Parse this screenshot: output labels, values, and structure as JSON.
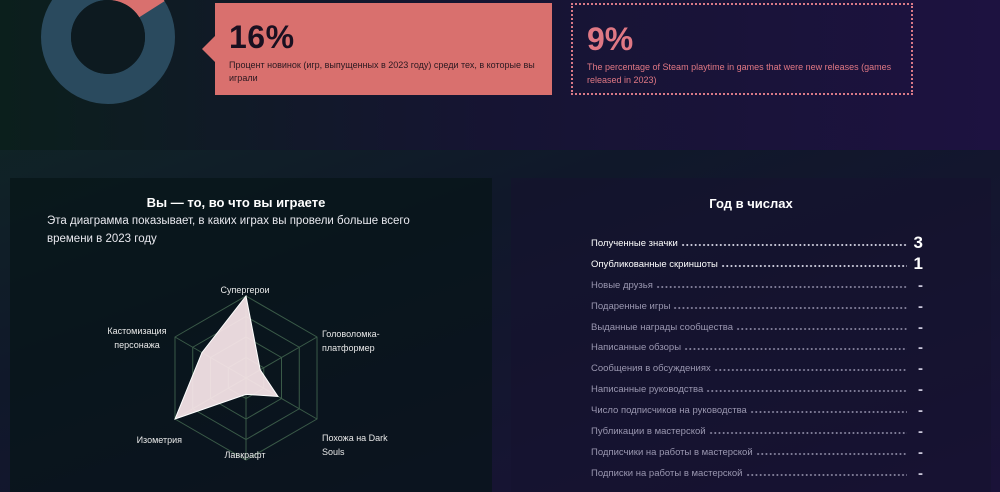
{
  "summary": {
    "new_releases_pct": "16%",
    "new_releases_desc": "Процент новинок (игр, выпущенных в 2023 году) среди тех, в которые вы играли",
    "steam_pct": "9%",
    "steam_desc": "The percentage of Steam playtime in games that were new releases (games released in 2023)",
    "donut": {
      "slice_share": 0.16,
      "colors": {
        "slice": "#d9706e",
        "ring": "#2a4a5e",
        "ring_dark": "#223a55"
      }
    }
  },
  "play_panel": {
    "title": "Вы — то, во что вы играете",
    "subtitle": "Эта диаграмма показывает, в каких играх вы провели больше всего времени в 2023 году",
    "axes": [
      {
        "label": "Супергерои",
        "value": 1.0
      },
      {
        "label": "Головоломка-платформер",
        "value": 0.2
      },
      {
        "label": "Похожа на Dark Souls",
        "value": 0.45
      },
      {
        "label": "Лавкрафт",
        "value": 0.2
      },
      {
        "label": "Изометрия",
        "value": 1.0
      },
      {
        "label": "Кастомизация персонажа",
        "value": 0.62
      }
    ],
    "colors": {
      "fill": "#fbe8ec",
      "grid": "#3a5a48"
    }
  },
  "year_panel": {
    "title": "Год в числах",
    "stats": [
      {
        "label": "Полученные значки",
        "value": "3",
        "active": true
      },
      {
        "label": "Опубликованные скриншоты",
        "value": "1",
        "active": true
      },
      {
        "label": "Новые друзья",
        "value": "-",
        "active": false
      },
      {
        "label": "Подаренные игры",
        "value": "-",
        "active": false
      },
      {
        "label": "Выданные награды сообщества",
        "value": "-",
        "active": false
      },
      {
        "label": "Написанные обзоры",
        "value": "-",
        "active": false
      },
      {
        "label": "Сообщения в обсуждениях",
        "value": "-",
        "active": false
      },
      {
        "label": "Написанные руководства",
        "value": "-",
        "active": false
      },
      {
        "label": "Число подписчиков на руководства",
        "value": "-",
        "active": false
      },
      {
        "label": "Публикации в мастерской",
        "value": "-",
        "active": false
      },
      {
        "label": "Подписчики на работы в мастерской",
        "value": "-",
        "active": false
      },
      {
        "label": "Подписки на работы в мастерской",
        "value": "-",
        "active": false
      }
    ]
  }
}
